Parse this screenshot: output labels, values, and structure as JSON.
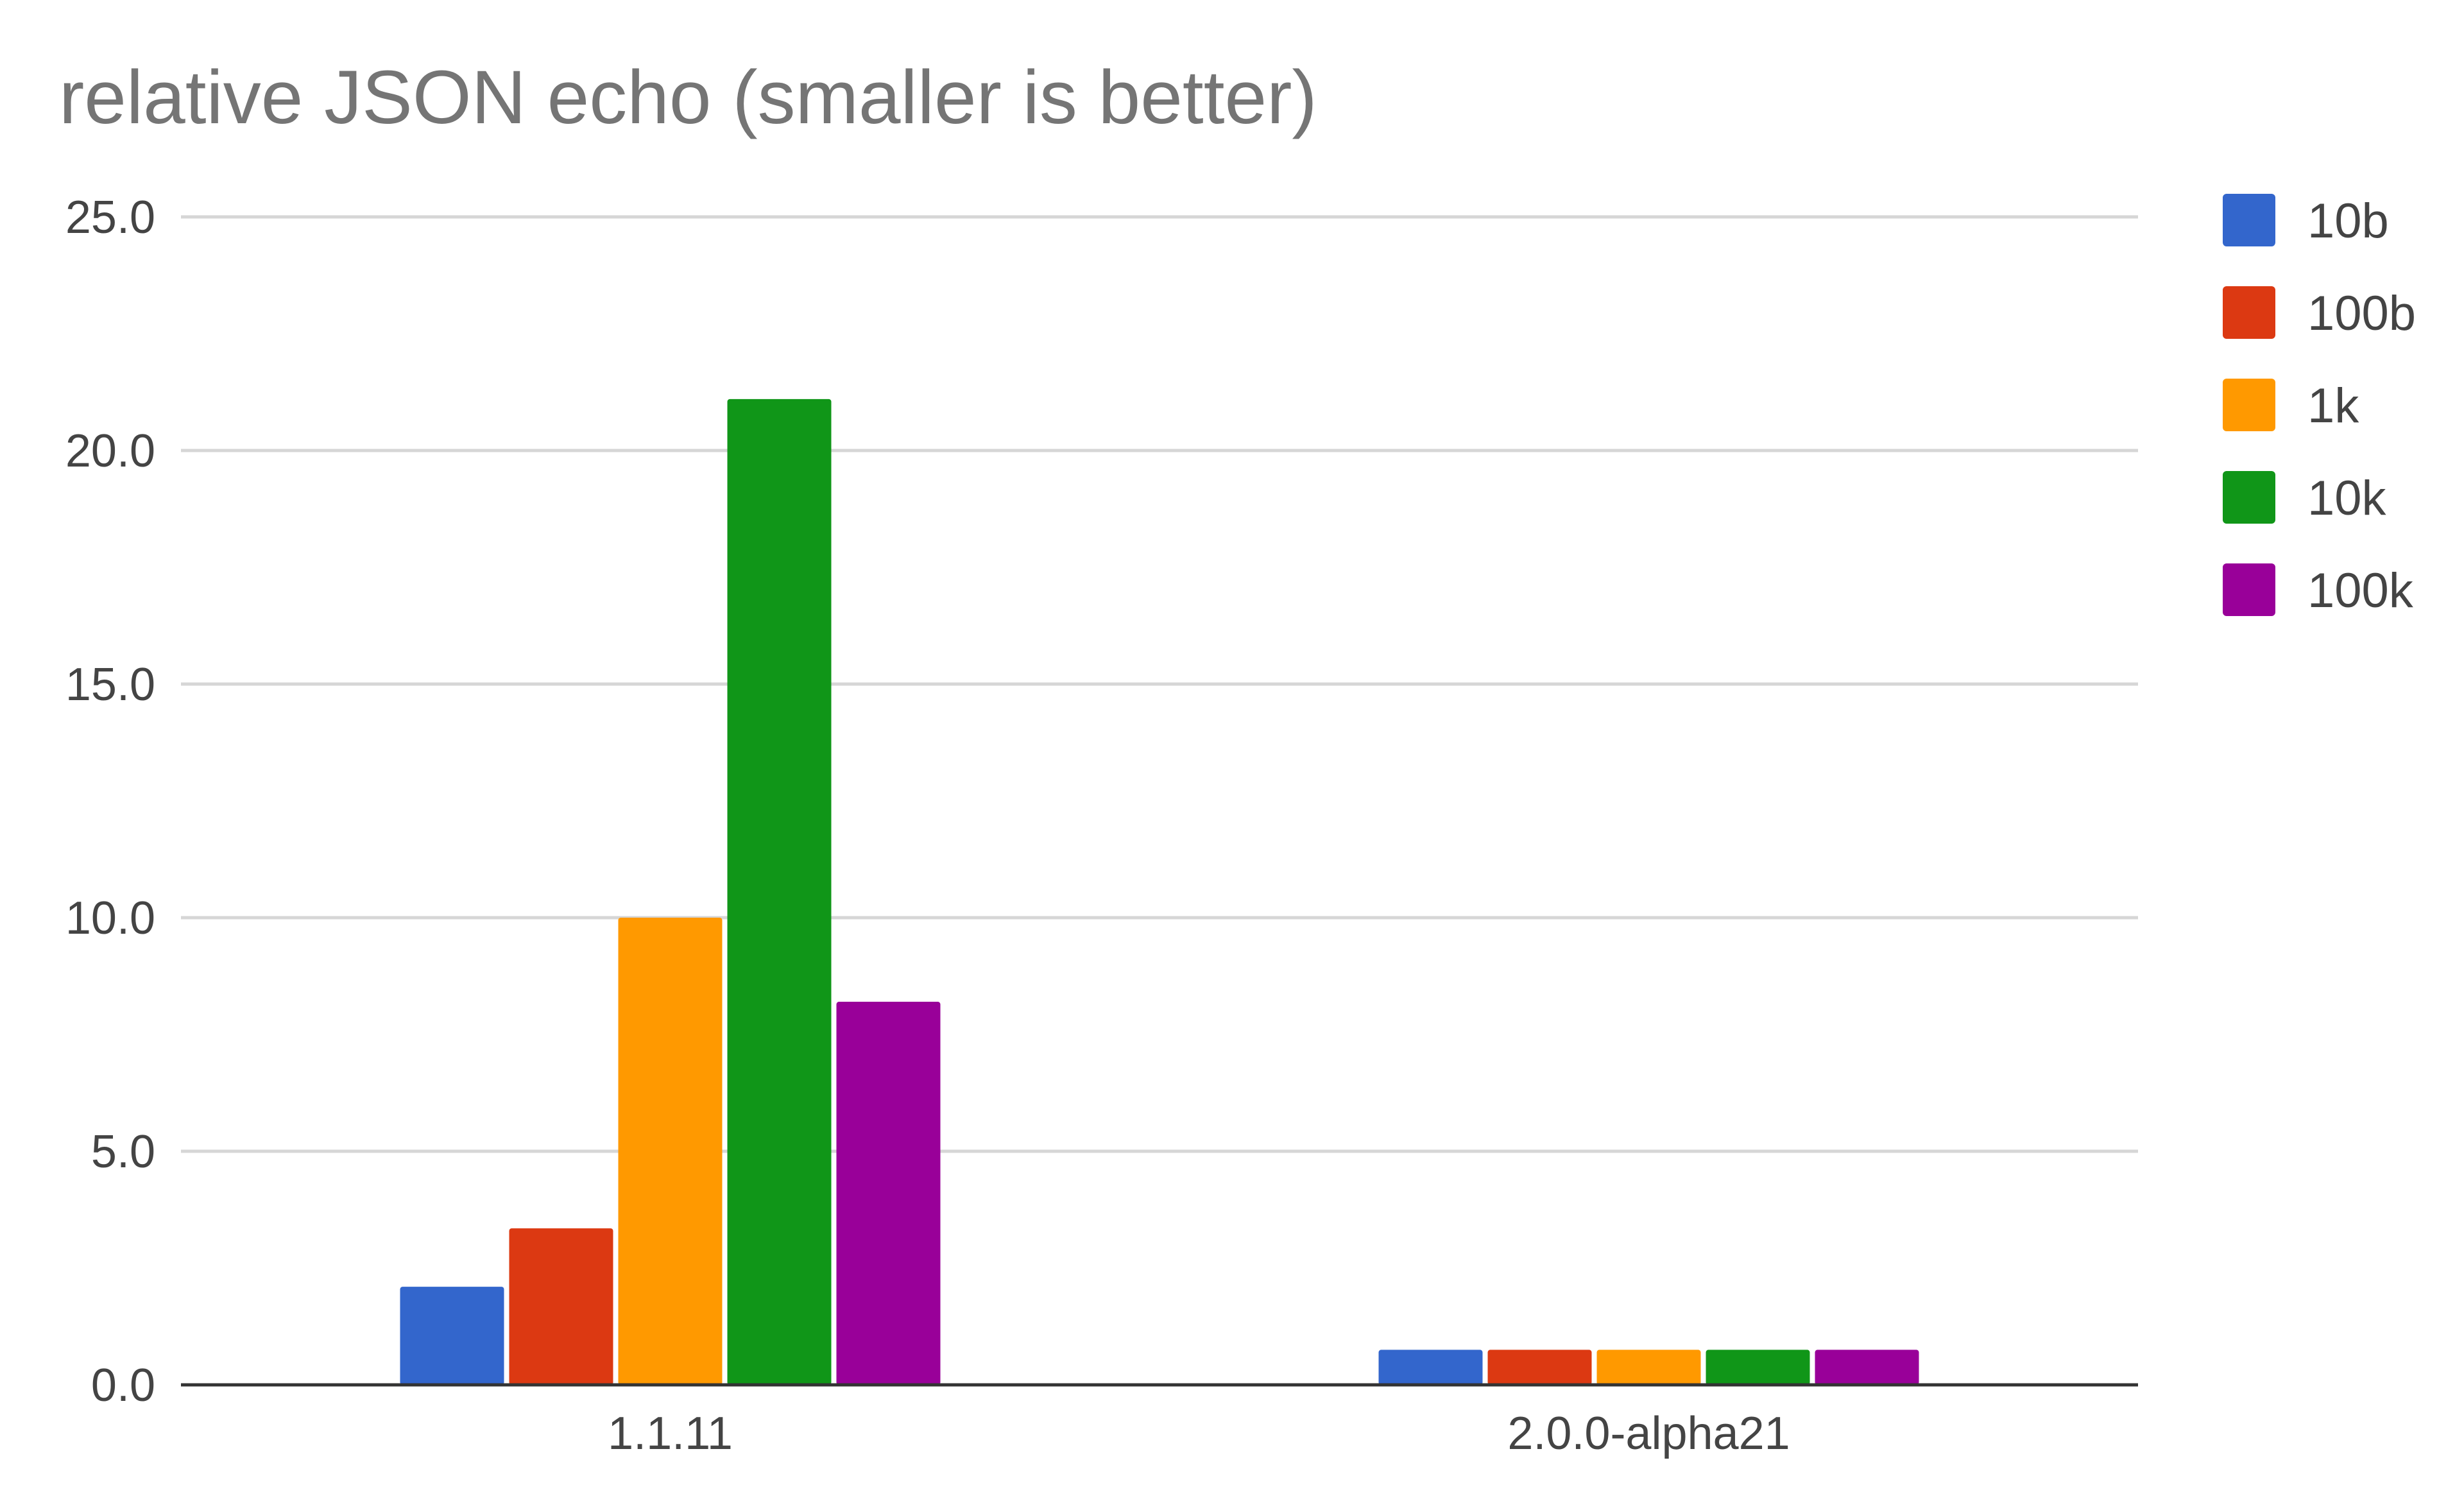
{
  "chart_data": {
    "type": "bar",
    "title": "relative JSON echo (smaller is better)",
    "xlabel": "",
    "ylabel": "",
    "categories": [
      "1.1.11",
      "2.0.0-alpha21"
    ],
    "series": [
      {
        "name": "10b",
        "color": "#3366cc",
        "values": [
          2.1,
          0.75
        ]
      },
      {
        "name": "100b",
        "color": "#dc3912",
        "values": [
          3.35,
          0.75
        ]
      },
      {
        "name": "1k",
        "color": "#ff9900",
        "values": [
          10.0,
          0.75
        ]
      },
      {
        "name": "10k",
        "color": "#109618",
        "values": [
          21.1,
          0.75
        ]
      },
      {
        "name": "100k",
        "color": "#990099",
        "values": [
          8.2,
          0.75
        ]
      }
    ],
    "ylim": [
      0,
      25
    ],
    "yticks": [
      "0.0",
      "5.0",
      "10.0",
      "15.0",
      "20.0",
      "25.0"
    ],
    "grid": true,
    "legend_position": "right"
  }
}
